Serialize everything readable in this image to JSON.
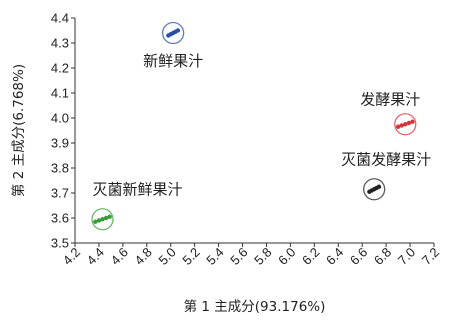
{
  "chart_data": {
    "type": "scatter",
    "xlabel": "第 1 主成分(93.176%)",
    "ylabel": "第 2 主成分(6.768%)",
    "xlim": [
      4.2,
      7.2
    ],
    "ylim": [
      3.5,
      4.4
    ],
    "x_ticks": [
      "4.2",
      "4.4",
      "4.6",
      "4.8",
      "5.0",
      "5.2",
      "5.4",
      "5.6",
      "5.8",
      "6.0",
      "6.2",
      "6.4",
      "6.6",
      "6.8",
      "7.0",
      "7.2"
    ],
    "y_ticks": [
      "3.5",
      "3.6",
      "3.7",
      "3.8",
      "3.9",
      "4.0",
      "4.1",
      "4.2",
      "4.3",
      "4.4"
    ],
    "grid": false,
    "groups": [
      {
        "label": "新鲜果汁",
        "color": "#2a4fa8",
        "points": [
          [
            4.98,
            4.33
          ],
          [
            5.0,
            4.335
          ],
          [
            5.02,
            4.34
          ],
          [
            5.04,
            4.345
          ],
          [
            5.06,
            4.35
          ]
        ],
        "label_position": "below"
      },
      {
        "label": "发酵果汁",
        "color": "#d8323a",
        "points": [
          [
            6.9,
            3.965
          ],
          [
            6.93,
            3.97
          ],
          [
            6.96,
            3.975
          ],
          [
            6.99,
            3.98
          ],
          [
            7.02,
            3.985
          ]
        ],
        "label_position": "above"
      },
      {
        "label": "灭菌发酵果汁",
        "color": "#222222",
        "points": [
          [
            6.66,
            3.705
          ],
          [
            6.68,
            3.71
          ],
          [
            6.7,
            3.715
          ],
          [
            6.72,
            3.72
          ],
          [
            6.74,
            3.725
          ]
        ],
        "label_position": "above"
      },
      {
        "label": "灭菌新鲜果汁",
        "color": "#3a9a3a",
        "points": [
          [
            4.37,
            3.585
          ],
          [
            4.4,
            3.59
          ],
          [
            4.43,
            3.595
          ],
          [
            4.46,
            3.6
          ],
          [
            4.49,
            3.605
          ]
        ],
        "label_position": "above"
      }
    ]
  }
}
